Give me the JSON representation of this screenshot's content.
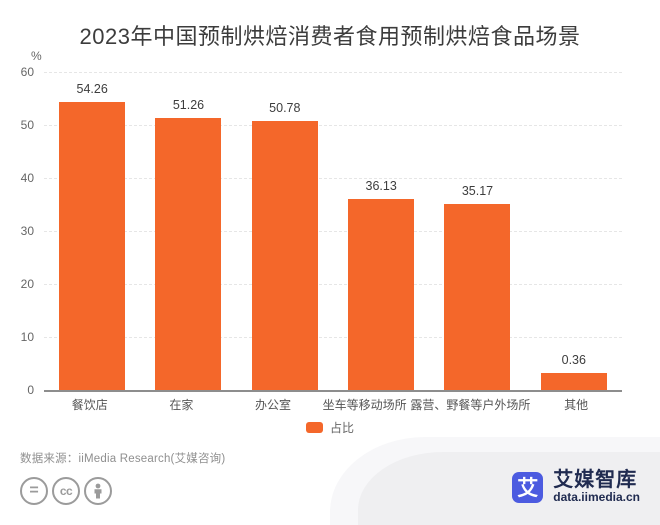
{
  "title": "2023年中国预制烘焙消费者食用预制烘焙食品场景",
  "chart_data": {
    "type": "bar",
    "title": "2023年中国预制烘焙消费者食用预制烘焙食品场景",
    "categories": [
      "餐饮店",
      "在家",
      "办公室",
      "坐车等移动场所",
      "露营、野餐等户外场所",
      "其他"
    ],
    "series": [
      {
        "name": "占比",
        "values": [
          54.26,
          51.26,
          50.78,
          36.13,
          35.17,
          0.36
        ]
      }
    ],
    "ylabel": "%",
    "ylim": [
      0,
      60
    ],
    "ytick_step": 10,
    "grid": true,
    "grid_style": "dashed-horizontal",
    "legend_position": "bottom",
    "value_labels_shown": true,
    "bar_color": "#F4672A"
  },
  "legend": {
    "label": "占比"
  },
  "footer": {
    "source_label": "数据来源：iiMedia Research(艾媒咨询)",
    "license_icons": [
      "equals-icon",
      "cc-icon",
      "person-icon"
    ]
  },
  "brand": {
    "logo_glyph": "艾",
    "name": "艾媒智库",
    "site": "data.iimedia.cn"
  },
  "colors": {
    "bar": "#F4672A",
    "logo_blue": "#4C5BE0",
    "brand_text": "#202B50",
    "wave_gray": "#efeff1"
  }
}
